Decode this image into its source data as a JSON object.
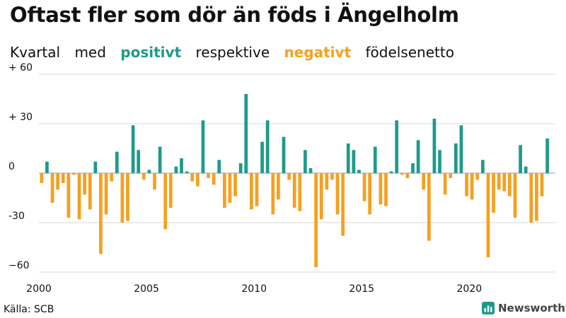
{
  "title": "Oftast fler som dör än föds i Ängelholm",
  "subtitle": {
    "part1": "Kvartal",
    "part2": "med",
    "positive": "positivt",
    "part3": "respektive",
    "negative": "negativt",
    "part4": "födelsenetto"
  },
  "colors": {
    "positive": "#1f9a8a",
    "negative": "#f5a01f",
    "grid": "#d9d9d9",
    "zero": "#999999"
  },
  "source": "Källa: SCB",
  "brand": "Newsworthy",
  "chart_data": {
    "type": "bar",
    "title": "Oftast fler som dör än föds i Ängelholm",
    "ylabel": "födelsenetto",
    "ylim": [
      -60,
      60
    ],
    "xlim": [
      2000,
      2024
    ],
    "y_ticks": [
      60,
      30,
      0,
      -30,
      -60
    ],
    "y_tick_labels": [
      "+ 60",
      "+ 30",
      "0",
      "-30",
      "−60"
    ],
    "x_ticks": [
      2000,
      2005,
      2010,
      2015,
      2020
    ],
    "x_tick_labels": [
      "2000",
      "2005",
      "2010",
      "2015",
      "2020"
    ],
    "start_year": 2000,
    "quarters_per_year": 4,
    "values": [
      -6,
      7,
      -18,
      -10,
      -6,
      -27,
      -1,
      -28,
      -13,
      -22,
      7,
      -49,
      -25,
      -5,
      13,
      -30,
      -29,
      29,
      14,
      -4,
      2,
      -10,
      16,
      -34,
      -21,
      4,
      9,
      1,
      -5,
      -8,
      32,
      -3,
      -7,
      8,
      -21,
      -18,
      -14,
      6,
      48,
      -22,
      -20,
      19,
      32,
      -25,
      -16,
      22,
      -4,
      -21,
      -23,
      14,
      3,
      -57,
      -28,
      -10,
      -4,
      -25,
      -38,
      18,
      14,
      2,
      -17,
      -25,
      16,
      -19,
      -20,
      1,
      32,
      -1,
      -3,
      6,
      20,
      -10,
      -41,
      33,
      14,
      -13,
      -3,
      18,
      29,
      -14,
      -16,
      -4,
      8,
      -51,
      -24,
      -10,
      -11,
      -14,
      -27,
      17,
      4,
      -30,
      -29,
      -14,
      21
    ]
  }
}
